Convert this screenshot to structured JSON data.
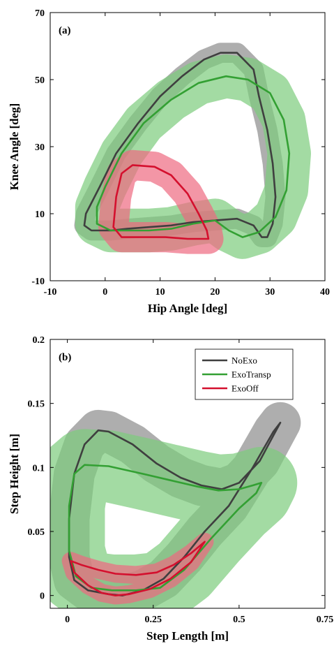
{
  "chart_data": [
    {
      "type": "line",
      "panel_label": "(a)",
      "xlabel": "Hip Angle [deg]",
      "ylabel": "Knee Angle [deg]",
      "xlim": [
        -10,
        40
      ],
      "ylim": [
        -10,
        70
      ],
      "xticks": [
        -10,
        0,
        10,
        20,
        30,
        40
      ],
      "yticks": [
        -10,
        10,
        30,
        50,
        70
      ],
      "xtick_labels": [
        "-10",
        "0",
        "10",
        "20",
        "30",
        "40"
      ],
      "ytick_labels": [
        "-10",
        "10",
        "30",
        "50",
        "70"
      ],
      "grid": false,
      "series": [
        {
          "name": "NoExo",
          "color": "#3f3f3f",
          "band_color": "#8c8c8c",
          "band_halfwidth": 3.0,
          "points": [
            [
              -3.5,
              10
            ],
            [
              -1,
              18
            ],
            [
              2,
              28
            ],
            [
              6,
              37
            ],
            [
              10,
              45
            ],
            [
              14,
              51
            ],
            [
              18,
              56
            ],
            [
              21,
              58
            ],
            [
              24,
              58
            ],
            [
              27,
              53
            ],
            [
              28,
              45
            ],
            [
              29.5,
              35
            ],
            [
              30.5,
              25
            ],
            [
              31,
              15
            ],
            [
              30.5,
              7
            ],
            [
              29.5,
              3
            ],
            [
              28.5,
              3
            ],
            [
              27,
              6.5
            ],
            [
              24,
              8.5
            ],
            [
              20,
              8
            ],
            [
              16,
              7.5
            ],
            [
              12,
              6.5
            ],
            [
              8,
              6
            ],
            [
              4,
              5.5
            ],
            [
              1,
              5
            ],
            [
              -2.5,
              5
            ],
            [
              -3.8,
              6.5
            ],
            [
              -3.5,
              10
            ]
          ]
        },
        {
          "name": "ExoTransp",
          "color": "#33a033",
          "band_color": "#7ccc7c",
          "band_halfwidth": 6.5,
          "points": [
            [
              -1.5,
              12
            ],
            [
              0,
              18
            ],
            [
              3,
              28
            ],
            [
              7,
              37
            ],
            [
              12,
              44
            ],
            [
              17,
              49
            ],
            [
              22,
              51
            ],
            [
              26,
              50
            ],
            [
              30,
              46
            ],
            [
              32.5,
              38
            ],
            [
              33.5,
              28
            ],
            [
              33,
              17
            ],
            [
              31,
              9
            ],
            [
              28,
              4.5
            ],
            [
              25,
              3
            ],
            [
              22.5,
              5
            ],
            [
              20,
              8
            ],
            [
              16,
              7
            ],
            [
              12,
              5.5
            ],
            [
              8,
              5
            ],
            [
              4,
              5
            ],
            [
              1,
              5
            ],
            [
              -1.5,
              7
            ],
            [
              -1.5,
              12
            ]
          ]
        },
        {
          "name": "ExoOff",
          "color": "#d4102e",
          "band_color": "#ee6a80",
          "band_halfwidth": 4.5,
          "points": [
            [
              1.5,
              6
            ],
            [
              2,
              15
            ],
            [
              3,
              22
            ],
            [
              5,
              24.5
            ],
            [
              9,
              24
            ],
            [
              12,
              21.5
            ],
            [
              15,
              16
            ],
            [
              17,
              10
            ],
            [
              18.5,
              5
            ],
            [
              18.8,
              2.5
            ],
            [
              15,
              2.5
            ],
            [
              11,
              3
            ],
            [
              7,
              3
            ],
            [
              3,
              3
            ],
            [
              1.5,
              6
            ]
          ]
        }
      ]
    },
    {
      "type": "line",
      "panel_label": "(b)",
      "xlabel": "Step Length [m]",
      "ylabel": "Step Height [m]",
      "xlim": [
        -0.05,
        0.75
      ],
      "ylim": [
        -0.01,
        0.2
      ],
      "xticks": [
        0,
        0.25,
        0.5,
        0.75
      ],
      "yticks": [
        0,
        0.05,
        0.1,
        0.15,
        0.2
      ],
      "xtick_labels": [
        "0",
        "0.25",
        "0.5",
        "0.75"
      ],
      "ytick_labels": [
        "0",
        "0.05",
        "0.1",
        "0.15",
        "0.2"
      ],
      "grid": false,
      "legend": {
        "location": "top-right",
        "entries": [
          "NoExo",
          "ExoTransp",
          "ExoOff"
        ]
      },
      "series": [
        {
          "name": "NoExo",
          "color": "#3f3f3f",
          "band_color": "#8c8c8c",
          "band_halfwidth": 0.016,
          "points": [
            [
              0.62,
              0.135
            ],
            [
              0.6,
              0.125
            ],
            [
              0.56,
              0.105
            ],
            [
              0.5,
              0.088
            ],
            [
              0.45,
              0.083
            ],
            [
              0.39,
              0.086
            ],
            [
              0.33,
              0.092
            ],
            [
              0.26,
              0.103
            ],
            [
              0.19,
              0.118
            ],
            [
              0.12,
              0.128
            ],
            [
              0.09,
              0.129
            ],
            [
              0.05,
              0.118
            ],
            [
              0.02,
              0.095
            ],
            [
              0.005,
              0.06
            ],
            [
              0.005,
              0.03
            ],
            [
              0.02,
              0.012
            ],
            [
              0.06,
              0.004
            ],
            [
              0.12,
              0.001
            ],
            [
              0.16,
              0.0
            ],
            [
              0.22,
              0.004
            ],
            [
              0.28,
              0.013
            ],
            [
              0.34,
              0.03
            ],
            [
              0.4,
              0.05
            ],
            [
              0.47,
              0.07
            ],
            [
              0.54,
              0.1
            ],
            [
              0.6,
              0.128
            ],
            [
              0.62,
              0.135
            ]
          ]
        },
        {
          "name": "ExoTransp",
          "color": "#33a033",
          "band_color": "#7ccc7c",
          "band_halfwidth": 0.028,
          "points": [
            [
              0.565,
              0.088
            ],
            [
              0.54,
              0.086
            ],
            [
              0.5,
              0.083
            ],
            [
              0.44,
              0.082
            ],
            [
              0.38,
              0.085
            ],
            [
              0.3,
              0.09
            ],
            [
              0.22,
              0.095
            ],
            [
              0.12,
              0.101
            ],
            [
              0.05,
              0.102
            ],
            [
              0.02,
              0.095
            ],
            [
              0.005,
              0.07
            ],
            [
              0.005,
              0.035
            ],
            [
              0.025,
              0.015
            ],
            [
              0.07,
              0.006
            ],
            [
              0.13,
              0.004
            ],
            [
              0.2,
              0.004
            ],
            [
              0.27,
              0.006
            ],
            [
              0.34,
              0.02
            ],
            [
              0.42,
              0.045
            ],
            [
              0.5,
              0.068
            ],
            [
              0.55,
              0.08
            ],
            [
              0.565,
              0.088
            ]
          ]
        },
        {
          "name": "ExoOff",
          "color": "#d4102e",
          "band_color": "#ee6a80",
          "band_halfwidth": 0.007,
          "points": [
            [
              0.01,
              0.027
            ],
            [
              0.04,
              0.024
            ],
            [
              0.09,
              0.02
            ],
            [
              0.14,
              0.017
            ],
            [
              0.2,
              0.016
            ],
            [
              0.26,
              0.018
            ],
            [
              0.31,
              0.024
            ],
            [
              0.36,
              0.033
            ],
            [
              0.4,
              0.042
            ],
            [
              0.36,
              0.026
            ],
            [
              0.3,
              0.013
            ],
            [
              0.24,
              0.005
            ],
            [
              0.18,
              0.001
            ],
            [
              0.14,
              0.0
            ],
            [
              0.1,
              0.002
            ],
            [
              0.06,
              0.008
            ],
            [
              0.02,
              0.018
            ],
            [
              0.01,
              0.027
            ]
          ]
        }
      ]
    }
  ]
}
